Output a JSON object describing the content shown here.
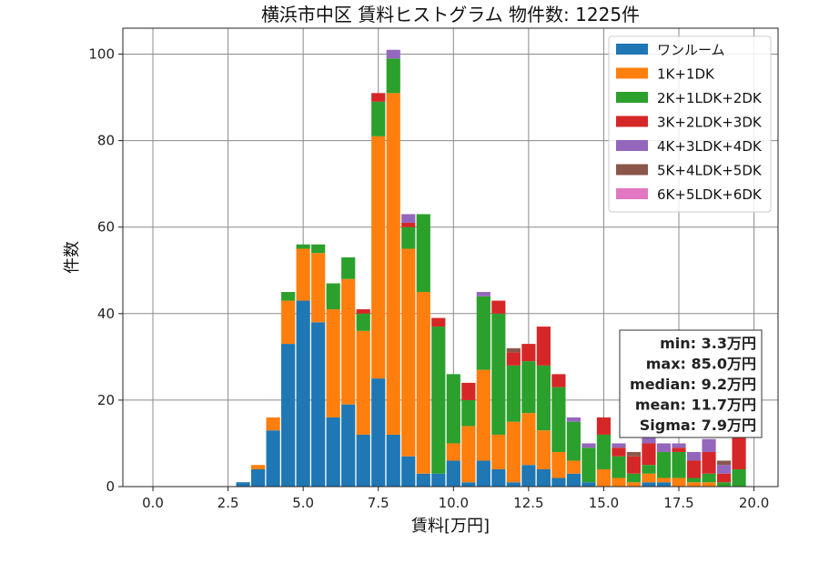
{
  "chart_data": {
    "type": "bar",
    "stacked": true,
    "title": "横浜市中区 賃料ヒストグラム 物件数: 1225件",
    "xlabel": "賃料[万円]",
    "ylabel": "件数",
    "xlim": [
      -1.0,
      20.8
    ],
    "ylim": [
      0,
      106
    ],
    "xticks": [
      "0.0",
      "2.5",
      "5.0",
      "7.5",
      "10.0",
      "12.5",
      "15.0",
      "17.5",
      "20.0"
    ],
    "yticks": [
      "0",
      "20",
      "40",
      "60",
      "80",
      "100"
    ],
    "grid": true,
    "legend_position": "top-right",
    "bin_width": 0.5,
    "x": [
      3.0,
      3.5,
      4.0,
      4.5,
      5.0,
      5.5,
      6.0,
      6.5,
      7.0,
      7.5,
      8.0,
      8.5,
      9.0,
      9.5,
      10.0,
      10.5,
      11.0,
      11.5,
      12.0,
      12.5,
      13.0,
      13.5,
      14.0,
      14.5,
      15.0,
      15.5,
      16.0,
      16.5,
      17.0,
      17.5,
      18.0,
      18.5,
      19.0,
      19.5
    ],
    "series": [
      {
        "name": "ワンルーム",
        "color": "#1f77b4",
        "values": [
          1,
          4,
          13,
          33,
          43,
          38,
          16,
          19,
          12,
          25,
          12,
          7,
          3,
          3,
          6,
          1,
          6,
          4,
          1,
          5,
          4,
          2,
          3,
          1,
          0,
          0,
          0,
          1,
          1,
          0,
          0,
          0,
          0,
          0
        ]
      },
      {
        "name": "1K+1DK",
        "color": "#ff7f0e",
        "values": [
          0,
          1,
          3,
          10,
          12,
          16,
          25,
          29,
          24,
          56,
          79,
          48,
          42,
          0,
          4,
          13,
          21,
          8,
          14,
          12,
          9,
          6,
          3,
          0,
          4,
          2,
          1,
          2,
          1,
          2,
          1,
          1,
          0,
          0
        ]
      },
      {
        "name": "2K+1LDK+2DK",
        "color": "#2ca02c",
        "values": [
          0,
          0,
          0,
          2,
          1,
          2,
          6,
          5,
          4,
          8,
          8,
          5,
          18,
          34,
          16,
          6,
          17,
          28,
          13,
          12,
          15,
          15,
          9,
          8,
          8,
          5,
          2,
          2,
          6,
          6,
          1,
          2,
          1,
          4
        ]
      },
      {
        "name": "3K+2LDK+3DK",
        "color": "#d62728",
        "values": [
          0,
          0,
          0,
          0,
          0,
          0,
          0,
          0,
          1,
          2,
          0,
          1,
          0,
          2,
          0,
          4,
          0,
          3,
          3,
          4,
          9,
          3,
          0,
          0,
          4,
          2,
          4,
          5,
          0,
          1,
          4,
          5,
          2,
          8
        ]
      },
      {
        "name": "4K+3LDK+4DK",
        "color": "#9467bd",
        "values": [
          0,
          0,
          0,
          0,
          0,
          0,
          0,
          0,
          0,
          0,
          2,
          2,
          0,
          0,
          0,
          0,
          1,
          0,
          0,
          0,
          0,
          0,
          1,
          1,
          0,
          1,
          0,
          2,
          2,
          1,
          2,
          3,
          2,
          0
        ]
      },
      {
        "name": "5K+4LDK+5DK",
        "color": "#8c564b",
        "values": [
          0,
          0,
          0,
          0,
          0,
          0,
          0,
          0,
          0,
          0,
          0,
          0,
          0,
          0,
          0,
          0,
          0,
          0,
          1,
          0,
          0,
          0,
          0,
          0,
          0,
          0,
          1,
          0,
          0,
          0,
          0,
          0,
          1,
          0
        ]
      },
      {
        "name": "6K+5LDK+6DK",
        "color": "#e377c2",
        "values": [
          0,
          0,
          0,
          0,
          0,
          0,
          0,
          0,
          0,
          0,
          0,
          0,
          0,
          0,
          0,
          0,
          0,
          0,
          0,
          0,
          0,
          0,
          0,
          0,
          0,
          0,
          0,
          0,
          0,
          0,
          0,
          0,
          0,
          0
        ]
      }
    ],
    "annotations": [
      "min: 3.3万円",
      "max: 85.0万円",
      "median: 9.2万円",
      "mean: 11.7万円",
      "Sigma: 7.9万円"
    ]
  }
}
